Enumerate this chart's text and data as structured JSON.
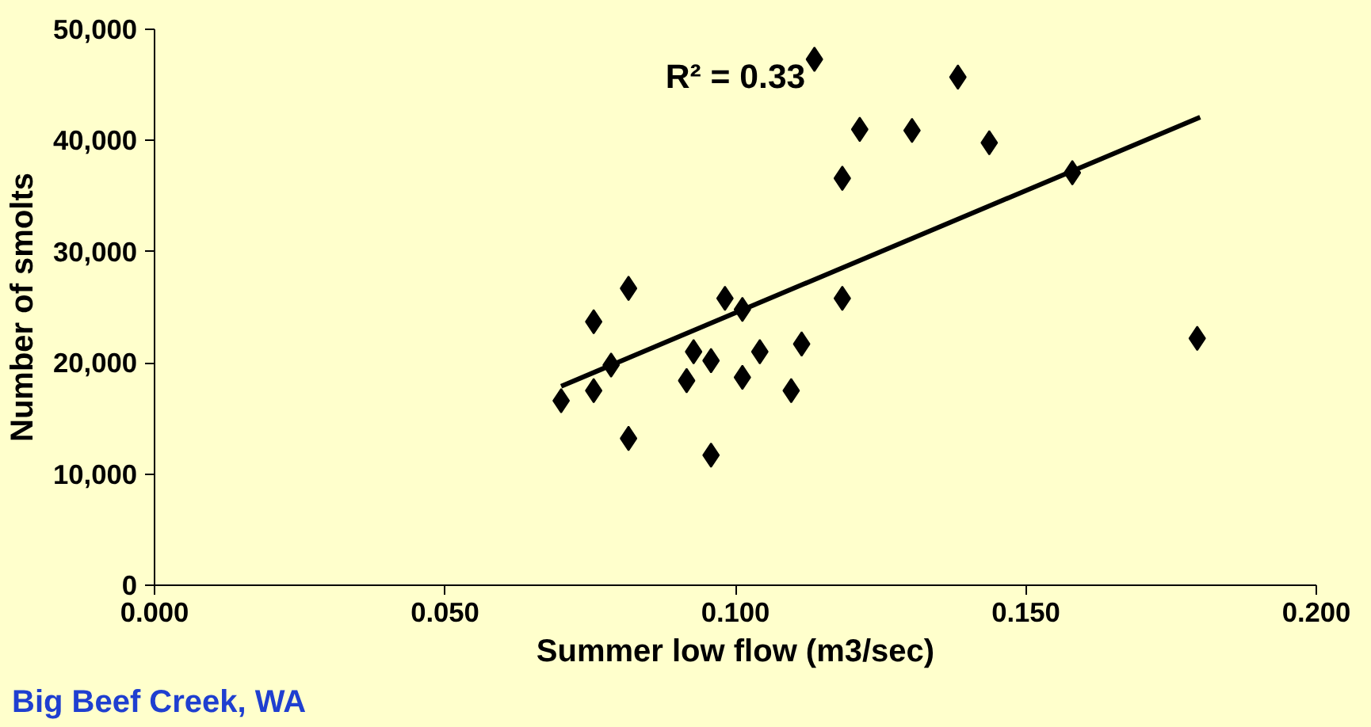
{
  "chart_data": {
    "type": "scatter",
    "xlabel": "Summer low flow (m3/sec)",
    "ylabel": "Number of smolts",
    "xlim": [
      0,
      0.2
    ],
    "xticks": [
      {
        "value": 0,
        "label": "0.000"
      },
      {
        "value": 0.05,
        "label": "0.050"
      },
      {
        "value": 0.1,
        "label": "0.100"
      },
      {
        "value": 0.15,
        "label": "0.150"
      },
      {
        "value": 0.2,
        "label": "0.200"
      }
    ],
    "ylim": [
      0,
      50000
    ],
    "yticks": [
      {
        "value": 0,
        "label": "0"
      },
      {
        "value": 10000,
        "label": "10,000"
      },
      {
        "value": 20000,
        "label": "20,000"
      },
      {
        "value": 30000,
        "label": "30,000"
      },
      {
        "value": 40000,
        "label": "40,000"
      },
      {
        "value": 50000,
        "label": "50,000"
      }
    ],
    "grid": false,
    "series": [
      {
        "marker": "diamond",
        "color": "#000000",
        "x": [
          0.07,
          0.0756,
          0.0786,
          0.0756,
          0.0816,
          0.0816,
          0.0916,
          0.0928,
          0.0958,
          0.0958,
          0.0982,
          0.1012,
          0.1012,
          0.1042,
          0.1096,
          0.1114,
          0.1184,
          0.1136,
          0.1184,
          0.1214,
          0.1304,
          0.1383,
          0.1437,
          0.158,
          0.1795
        ],
        "values": [
          16600,
          17500,
          19800,
          23700,
          26700,
          13200,
          18400,
          21000,
          20200,
          11700,
          25800,
          24800,
          18700,
          21000,
          17500,
          21700,
          25800,
          47300,
          36600,
          41000,
          40900,
          45700,
          39800,
          37100,
          22200
        ]
      },
      {
        "type": "line",
        "marker": "none",
        "color": "#000000",
        "line_style": "solid",
        "x": [
          0.07,
          0.18
        ],
        "values": [
          17900,
          42100
        ]
      }
    ],
    "annotations": [
      "R² = 0.33",
      "Big Beef Creek, WA"
    ]
  }
}
